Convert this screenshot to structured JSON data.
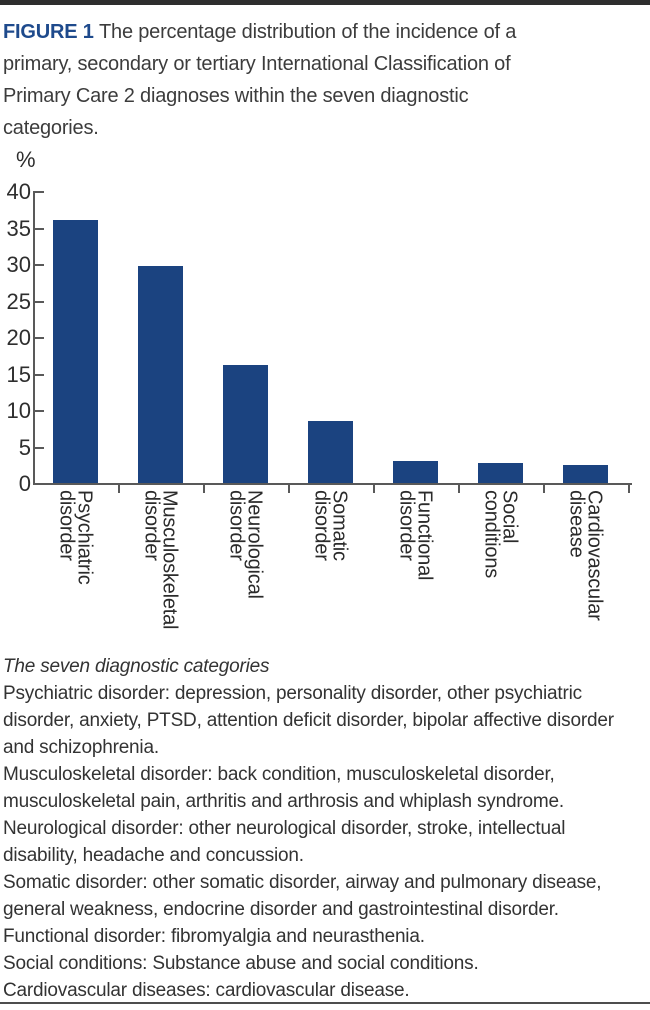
{
  "figure": {
    "label": "FIGURE 1",
    "title_lines": [
      "The percentage distribution of the incidence of a",
      "primary, secondary or tertiary International Classification of",
      "Primary Care 2 diagnoses within the seven diagnostic",
      "categories."
    ]
  },
  "chart_data": {
    "type": "bar",
    "title": "",
    "xlabel": "",
    "ylabel": "%",
    "ylim": [
      0,
      40
    ],
    "yticks": [
      0,
      5,
      10,
      15,
      20,
      25,
      30,
      35,
      40
    ],
    "grid": false,
    "legend": false,
    "categories": [
      "Psychiatric disorder",
      "Musculoskeletal disorder",
      "Neurological disorder",
      "Somatic disorder",
      "Functional disorder",
      "Social conditions",
      "Cardiovascular disease"
    ],
    "category_lines": [
      [
        "Psychiatric",
        "disorder"
      ],
      [
        "Musculoskeletal",
        "disorder"
      ],
      [
        "Neurological",
        "disorder"
      ],
      [
        "Somatic",
        "disorder"
      ],
      [
        "Functional",
        "disorder"
      ],
      [
        "Social",
        "conditions"
      ],
      [
        "Cardiovascular",
        "disease"
      ]
    ],
    "values": [
      36,
      29.7,
      16.2,
      8.5,
      3.0,
      2.8,
      2.5
    ]
  },
  "caption": {
    "heading": "The seven diagnostic categories",
    "lines": [
      "Psychiatric disorder: depression, personality disorder, other psychiatric",
      "disorder, anxiety, PTSD, attention deficit disorder, bipolar affective disorder",
      "and schizophrenia.",
      "Musculoskeletal disorder: back condition, musculoskeletal disorder,",
      "musculoskeletal pain, arthritis and arthrosis and whiplash syndrome.",
      "Neurological disorder: other neurological disorder, stroke, intellectual",
      "disability, headache and concussion.",
      "Somatic disorder: other somatic disorder, airway and pulmonary disease,",
      "general weakness, endocrine disorder and gastrointestinal disorder.",
      "Functional disorder: fibromyalgia and neurasthenia.",
      "Social conditions: Substance abuse and social conditions.",
      "Cardiovascular diseases: cardiovascular disease."
    ]
  },
  "colors": {
    "bar": "#1b4380",
    "figure_label": "#1e4a8c",
    "title_text": "#3c3c3c",
    "axis": "#595959",
    "caption_text": "#333333",
    "top_border": "#2e2e2e"
  }
}
